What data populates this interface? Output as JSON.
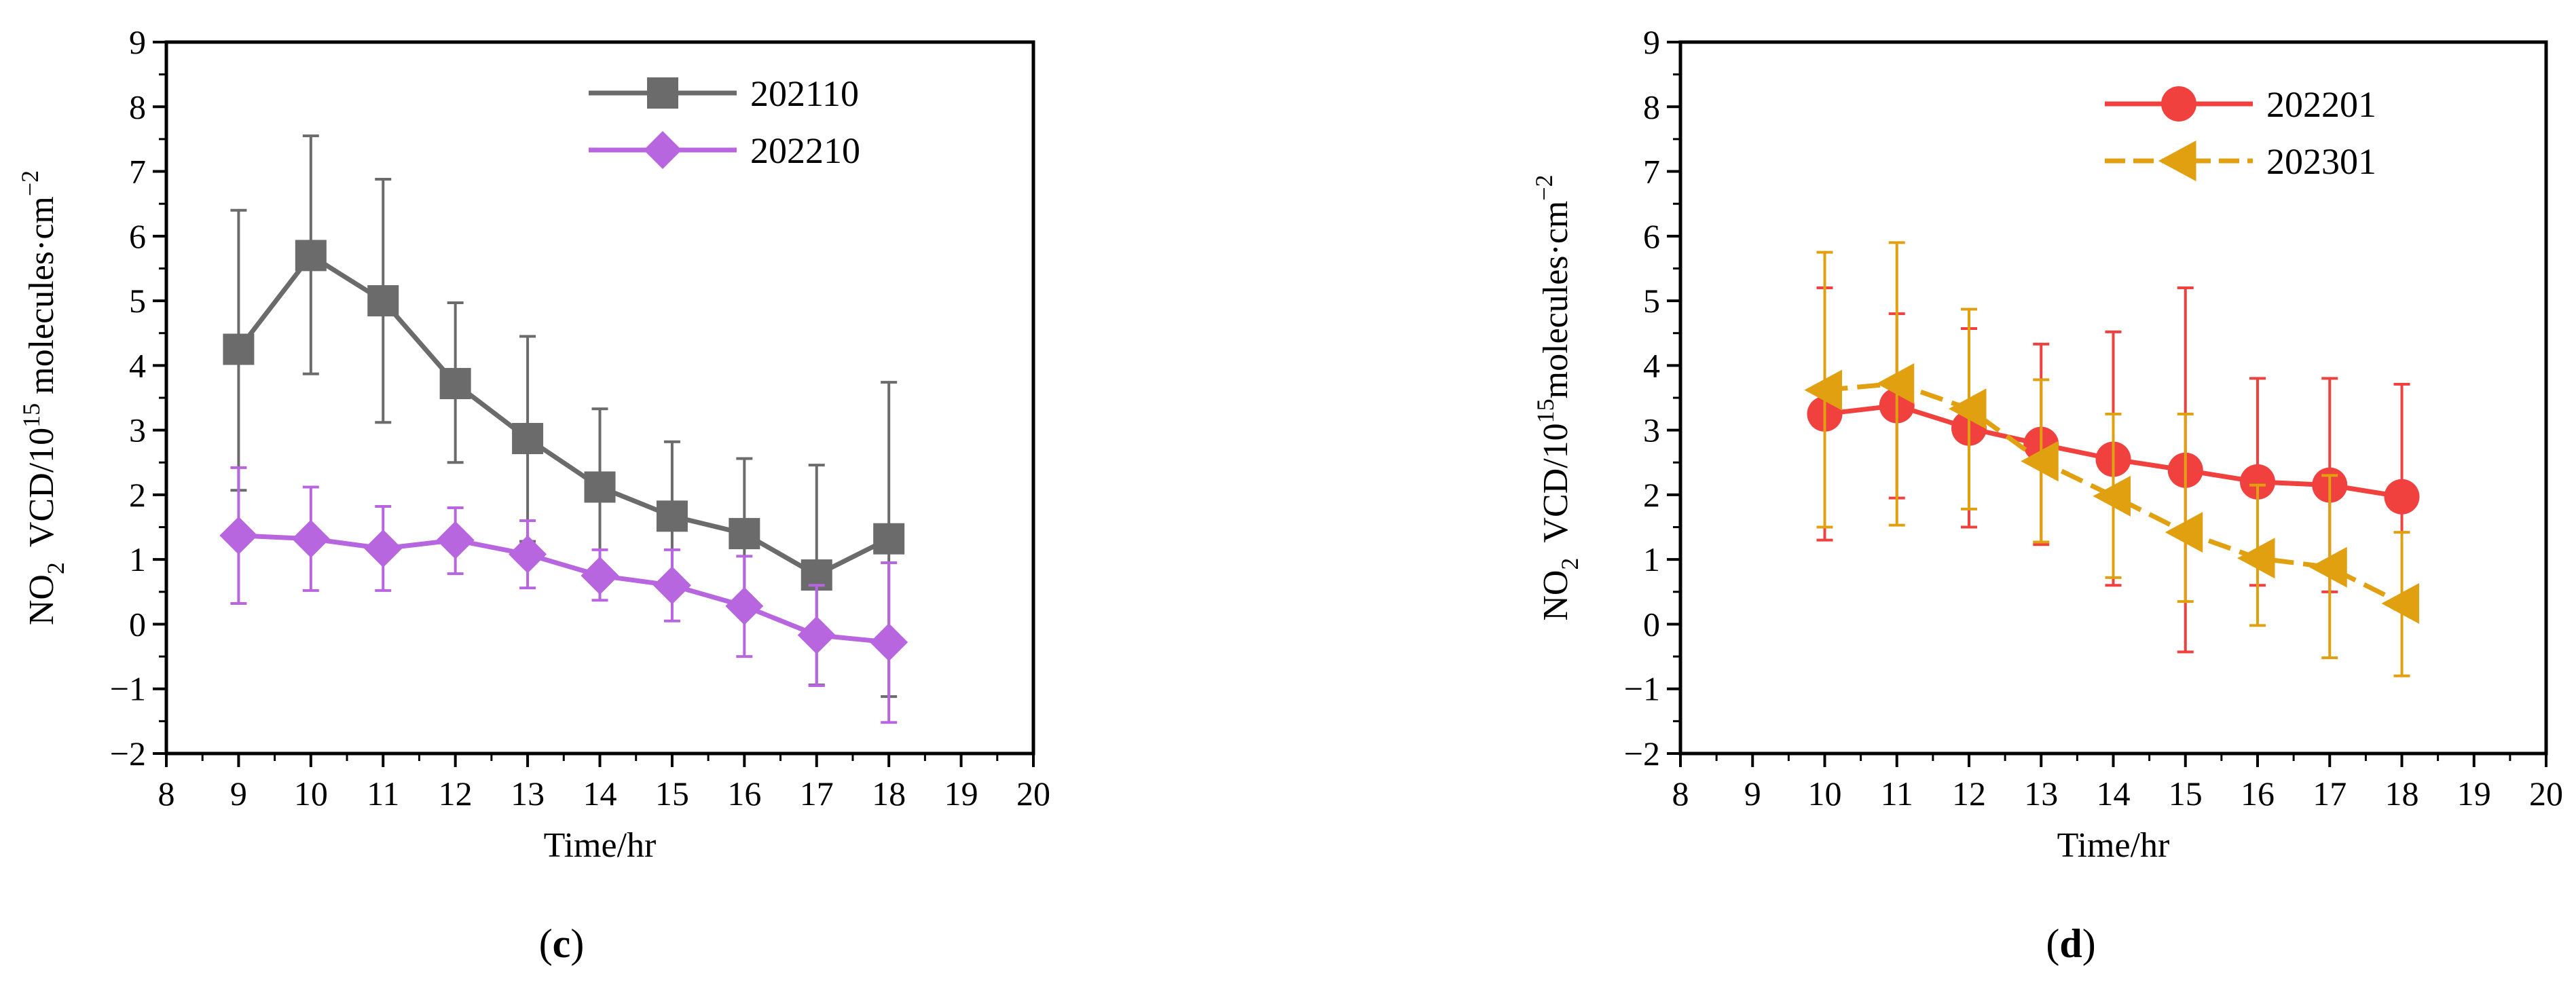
{
  "chart_data": [
    {
      "type": "line",
      "panel_label": {
        "open": "(",
        "letter": "c",
        "close": ")"
      },
      "xlabel": "Time/hr",
      "ylabel": {
        "species": "NO",
        "species_sub": "2",
        "unit_prefix": "VCD/10",
        "exponent": "15",
        "unit_suffix": " molecules·cm",
        "unit_sup": "−2"
      },
      "xlim": [
        8,
        20
      ],
      "ylim": [
        -2,
        9
      ],
      "x_ticks": [
        8,
        9,
        10,
        11,
        12,
        13,
        14,
        15,
        16,
        17,
        18,
        19,
        20
      ],
      "y_ticks": [
        -2,
        -1,
        0,
        1,
        2,
        3,
        4,
        5,
        6,
        7,
        8,
        9
      ],
      "x_tick_labels": [
        "8",
        "9",
        "10",
        "11",
        "12",
        "13",
        "14",
        "15",
        "16",
        "17",
        "18",
        "19",
        "20"
      ],
      "y_tick_labels": [
        "−2",
        "−1",
        "0",
        "1",
        "2",
        "3",
        "4",
        "5",
        "6",
        "7",
        "8",
        "9"
      ],
      "legend_position": "top-right",
      "series": [
        {
          "name": "202110",
          "color": "#6b6b6b",
          "marker": "square",
          "dash": "solid",
          "x": [
            9,
            10,
            11,
            12,
            13,
            14,
            15,
            16,
            17,
            18
          ],
          "values": [
            4.25,
            5.7,
            5.0,
            3.72,
            2.87,
            2.12,
            1.67,
            1.4,
            0.76,
            1.32
          ],
          "err_upper": [
            6.4,
            7.55,
            6.88,
            4.97,
            4.45,
            3.33,
            2.82,
            2.56,
            2.46,
            3.74
          ],
          "err_lower": [
            2.07,
            3.87,
            3.12,
            2.5,
            1.28,
            0.88,
            0.55,
            0.25,
            -0.94,
            -1.12
          ]
        },
        {
          "name": "202210",
          "color": "#b865e0",
          "marker": "diamond",
          "dash": "solid",
          "x": [
            9,
            10,
            11,
            12,
            13,
            14,
            15,
            16,
            17,
            18
          ],
          "values": [
            1.37,
            1.32,
            1.17,
            1.3,
            1.08,
            0.75,
            0.6,
            0.28,
            -0.17,
            -0.28
          ],
          "err_upper": [
            2.42,
            2.12,
            1.82,
            1.8,
            1.6,
            1.15,
            1.15,
            1.05,
            0.6,
            0.95
          ],
          "err_lower": [
            0.32,
            0.52,
            0.52,
            0.78,
            0.56,
            0.37,
            0.05,
            -0.5,
            -0.95,
            -1.52
          ]
        }
      ]
    },
    {
      "type": "line",
      "panel_label": {
        "open": "(",
        "letter": "d",
        "close": ")"
      },
      "xlabel": "Time/hr",
      "ylabel": {
        "species": "NO",
        "species_sub": "2",
        "unit_prefix": "VCD/10",
        "exponent": "15",
        "unit_suffix": "molecules·cm",
        "unit_sup": "−2"
      },
      "xlim": [
        8,
        20
      ],
      "ylim": [
        -2,
        9
      ],
      "x_ticks": [
        8,
        9,
        10,
        11,
        12,
        13,
        14,
        15,
        16,
        17,
        18,
        19,
        20
      ],
      "y_ticks": [
        -2,
        -1,
        0,
        1,
        2,
        3,
        4,
        5,
        6,
        7,
        8,
        9
      ],
      "x_tick_labels": [
        "8",
        "9",
        "10",
        "11",
        "12",
        "13",
        "14",
        "15",
        "16",
        "17",
        "18",
        "19",
        "20"
      ],
      "y_tick_labels": [
        "−2",
        "−1",
        "0",
        "1",
        "2",
        "3",
        "4",
        "5",
        "6",
        "7",
        "8",
        "9"
      ],
      "legend_position": "top-right",
      "series": [
        {
          "name": "202201",
          "color": "#f0413f",
          "marker": "circle",
          "dash": "solid",
          "x": [
            10,
            11,
            12,
            13,
            14,
            15,
            16,
            17,
            18
          ],
          "values": [
            3.25,
            3.38,
            3.03,
            2.78,
            2.55,
            2.38,
            2.2,
            2.15,
            1.97
          ],
          "err_upper": [
            5.2,
            4.8,
            4.57,
            4.33,
            4.52,
            5.2,
            3.8,
            3.8,
            3.71
          ],
          "err_lower": [
            1.3,
            1.95,
            1.5,
            1.23,
            0.6,
            -0.43,
            0.6,
            0.5,
            0.23
          ]
        },
        {
          "name": "202301",
          "color": "#e0a010",
          "marker": "triangle-left",
          "dash": "dashed",
          "x": [
            10,
            11,
            12,
            13,
            14,
            15,
            16,
            17,
            18
          ],
          "values": [
            3.62,
            3.72,
            3.33,
            2.52,
            1.98,
            1.42,
            1.02,
            0.88,
            0.32
          ],
          "err_upper": [
            5.75,
            5.9,
            4.87,
            3.78,
            3.25,
            3.25,
            2.15,
            2.3,
            1.42
          ],
          "err_lower": [
            1.5,
            1.53,
            1.78,
            1.27,
            0.72,
            0.35,
            -0.02,
            -0.52,
            -0.8
          ]
        }
      ]
    }
  ]
}
